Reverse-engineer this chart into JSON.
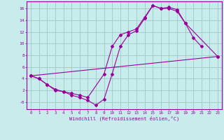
{
  "bg_color": "#c8ecec",
  "grid_color": "#a0c8c8",
  "line_color": "#990099",
  "xlabel": "Windchill (Refroidissement éolien,°C)",
  "xlim": [
    -0.5,
    23.5
  ],
  "ylim": [
    -1.2,
    17.2
  ],
  "xticks": [
    0,
    1,
    2,
    3,
    4,
    5,
    6,
    7,
    8,
    9,
    10,
    11,
    12,
    13,
    14,
    15,
    16,
    17,
    18,
    19,
    20,
    21,
    22,
    23
  ],
  "yticks": [
    0,
    2,
    4,
    6,
    8,
    10,
    12,
    14,
    16
  ],
  "ytick_labels": [
    "-0",
    "2",
    "4",
    "6",
    "8",
    "10",
    "12",
    "14",
    "16"
  ],
  "series": [
    {
      "x": [
        0,
        1,
        2,
        3,
        4,
        5,
        6,
        7,
        8,
        9,
        10,
        11,
        12,
        13,
        14,
        15,
        16,
        17,
        18,
        19,
        20,
        21
      ],
      "y": [
        4.5,
        4.0,
        3.0,
        2.0,
        1.8,
        1.2,
        0.8,
        0.3,
        -0.5,
        0.5,
        4.8,
        9.5,
        11.5,
        12.2,
        14.3,
        16.5,
        16.0,
        16.2,
        15.8,
        13.5,
        11.0,
        9.5
      ]
    },
    {
      "x": [
        0,
        1,
        2,
        3,
        4,
        5,
        6,
        7,
        9,
        10,
        11,
        12,
        13,
        14,
        15,
        16,
        17,
        18,
        19,
        23
      ],
      "y": [
        4.5,
        4.0,
        3.0,
        2.2,
        1.8,
        1.5,
        1.2,
        0.8,
        4.8,
        9.5,
        11.5,
        12.0,
        12.5,
        14.5,
        16.5,
        16.0,
        16.0,
        15.5,
        13.5,
        7.8
      ]
    },
    {
      "x": [
        0,
        23
      ],
      "y": [
        4.5,
        7.8
      ]
    }
  ]
}
